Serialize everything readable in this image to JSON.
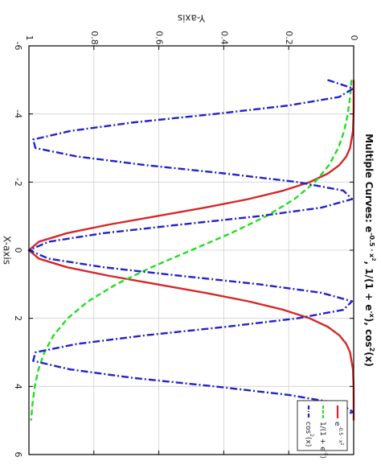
{
  "chart_data": {
    "type": "line",
    "title": "Multiple Curves: e^{-0.5·x²}, 1/(1 + e^{-x}), cos²(x)",
    "title_parts": {
      "prefix": "Multiple Curves: e",
      "exp1": "-0.5 · x",
      "exp1_sq": "2",
      "mid": ", 1/(1 + e",
      "exp2": "-x",
      "mid2": "), cos",
      "exp3": "2",
      "suffix": "(x)"
    },
    "xlabel": "X-axis",
    "ylabel": "Y-axis",
    "xlim": [
      -6,
      6
    ],
    "ylim": [
      0,
      1
    ],
    "x_ticks": [
      "-6",
      "-4",
      "-2",
      "0",
      "2",
      "4",
      "6"
    ],
    "y_ticks": [
      "0",
      "0.2",
      "0.4",
      "0.6",
      "0.8",
      "1"
    ],
    "x_tick_values": [
      -6,
      -4,
      -2,
      0,
      2,
      4,
      6
    ],
    "y_tick_values": [
      0,
      0.2,
      0.4,
      0.6,
      0.8,
      1
    ],
    "grid": true,
    "legend_position": "bottom-right",
    "orientation": "rotated-90-clockwise",
    "series": [
      {
        "name": "e^{-0.5·x²}",
        "legend_base": "e",
        "legend_sup": "-0.5 · x",
        "legend_sup2": "2",
        "color": "#d62728",
        "dash": "solid",
        "x": [
          -5,
          -4.5,
          -4,
          -3.5,
          -3,
          -2.75,
          -2.5,
          -2.25,
          -2,
          -1.75,
          -1.5,
          -1.25,
          -1,
          -0.75,
          -0.5,
          -0.25,
          0,
          0.25,
          0.5,
          0.75,
          1,
          1.25,
          1.5,
          1.75,
          2,
          2.25,
          2.5,
          2.75,
          3,
          3.5,
          4,
          4.5,
          5
        ],
        "y": [
          0.0,
          0.0,
          0.0003,
          0.0022,
          0.0111,
          0.0228,
          0.0439,
          0.0796,
          0.1353,
          0.2163,
          0.3247,
          0.4578,
          0.6065,
          0.7548,
          0.8825,
          0.9692,
          1.0,
          0.9692,
          0.8825,
          0.7548,
          0.6065,
          0.4578,
          0.3247,
          0.2163,
          0.1353,
          0.0796,
          0.0439,
          0.0228,
          0.0111,
          0.0022,
          0.0003,
          0.0,
          0.0
        ]
      },
      {
        "name": "1/(1 + e^{-x})",
        "legend_base": "1/(1 + e",
        "legend_sup": "-x",
        "legend_suffix": ")",
        "color": "#22dd22",
        "dash": "dashed",
        "x": [
          -5,
          -4.5,
          -4,
          -3.5,
          -3,
          -2.5,
          -2,
          -1.5,
          -1,
          -0.5,
          0,
          0.5,
          1,
          1.5,
          2,
          2.5,
          3,
          3.5,
          4,
          4.5,
          5
        ],
        "y": [
          0.0067,
          0.011,
          0.018,
          0.0293,
          0.0474,
          0.0759,
          0.1192,
          0.1824,
          0.2689,
          0.3775,
          0.5,
          0.6225,
          0.7311,
          0.8176,
          0.8808,
          0.9241,
          0.9526,
          0.9707,
          0.982,
          0.989,
          0.9933
        ]
      },
      {
        "name": "cos²(x)",
        "legend_base": "cos",
        "legend_sup": "2",
        "legend_suffix": "(x)",
        "color": "#2222cc",
        "dash": "dashdot",
        "x": [
          -5,
          -4.75,
          -4.5,
          -4.25,
          -4,
          -3.75,
          -3.5,
          -3.25,
          -3,
          -2.75,
          -2.5,
          -2.25,
          -2,
          -1.75,
          -1.5,
          -1.25,
          -1,
          -0.75,
          -0.5,
          -0.25,
          0,
          0.25,
          0.5,
          0.75,
          1,
          1.25,
          1.5,
          1.75,
          2,
          2.25,
          2.5,
          2.75,
          3,
          3.25,
          3.5,
          3.75,
          4,
          4.25,
          4.5,
          4.75,
          5
        ],
        "y": [
          0.0805,
          0.0015,
          0.0444,
          0.1997,
          0.4272,
          0.6793,
          0.8727,
          0.987,
          0.9801,
          0.8509,
          0.6418,
          0.3942,
          0.1732,
          0.0317,
          0.005,
          0.0995,
          0.2919,
          0.5354,
          0.7702,
          0.9388,
          1.0,
          0.9388,
          0.7702,
          0.5354,
          0.2919,
          0.0995,
          0.005,
          0.0317,
          0.1732,
          0.3942,
          0.6418,
          0.8509,
          0.9801,
          0.987,
          0.8727,
          0.6793,
          0.4272,
          0.1997,
          0.0444,
          0.0015,
          0.0805
        ]
      }
    ]
  }
}
